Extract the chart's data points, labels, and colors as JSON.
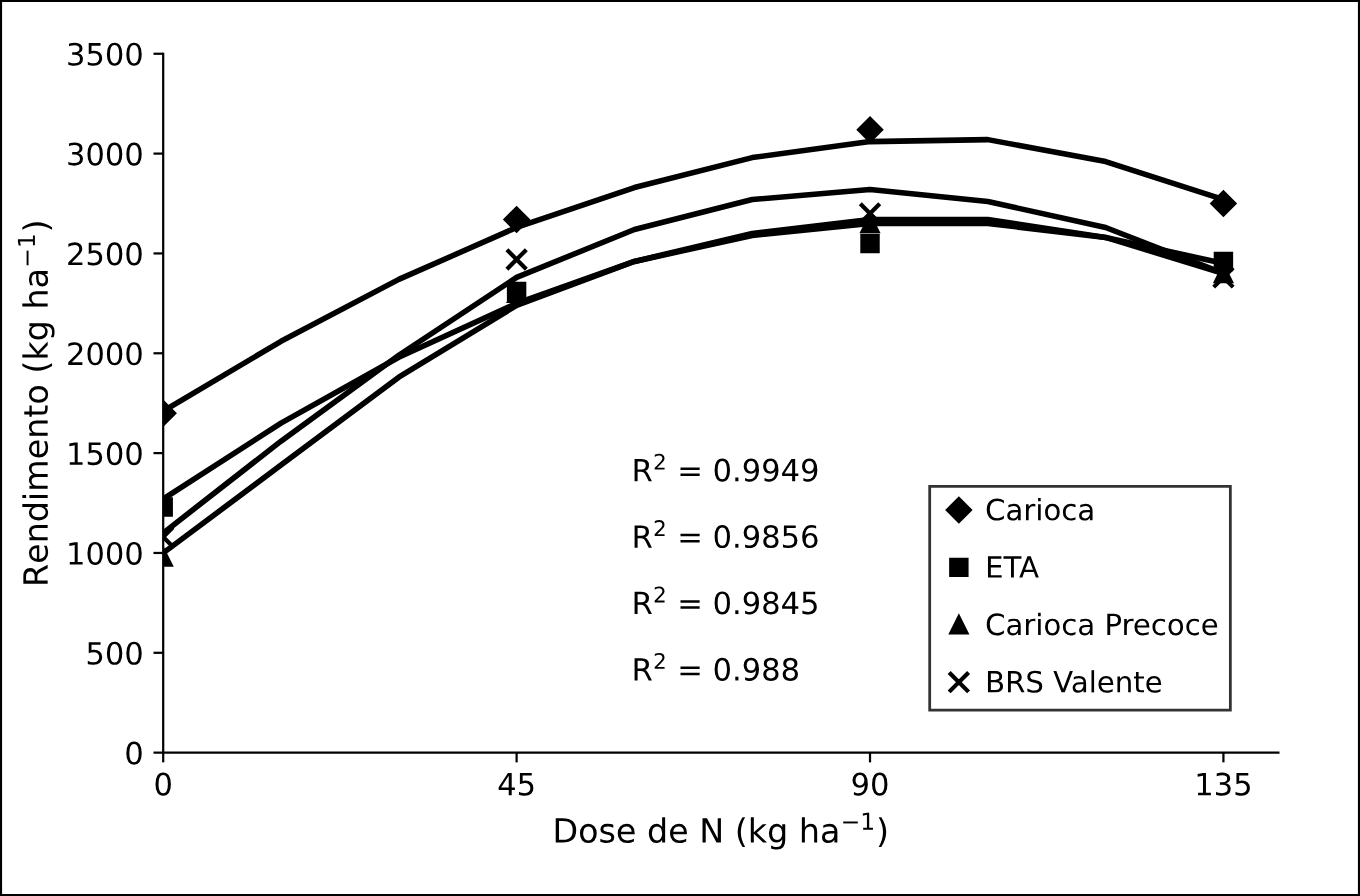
{
  "chart_data": {
    "type": "scatter",
    "xlabel": "Dose de N (kg ha$^{−1}$)",
    "ylabel": "Rendimento (kg ha$^{−1}$)",
    "x": [
      0,
      45,
      90,
      135
    ],
    "xlim": [
      0,
      142
    ],
    "xticks": [
      0,
      45,
      90,
      135
    ],
    "ylim": [
      0,
      3500
    ],
    "yticks": [
      0,
      500,
      1000,
      1500,
      2000,
      2500,
      3000,
      3500
    ],
    "grid": false,
    "legend": "bottom right",
    "series": [
      {
        "name": "Carioca",
        "color": "#000000",
        "marker": "diamond",
        "values": [
          1700,
          2670,
          3120,
          2750
        ]
      },
      {
        "name": "ETA",
        "color": "#000000",
        "marker": "square",
        "values": [
          1230,
          2310,
          2550,
          2460
        ]
      },
      {
        "name": "Carioca Precoce",
        "color": "#000000",
        "marker": "triangle",
        "values": [
          980,
          2300,
          2650,
          2400
        ]
      },
      {
        "name": "BRS Valente",
        "color": "#000000",
        "marker": "cross",
        "values": [
          1080,
          2470,
          2700,
          2380
        ]
      },
      {
        "type": "line",
        "color": "#000000",
        "marker": "none",
        "x": [
          0,
          15,
          30,
          45,
          60,
          75,
          90,
          105,
          120,
          135
        ],
        "values": [
          1710,
          2060,
          2370,
          2630,
          2830,
          2980,
          3060,
          3070,
          2960,
          2770
        ]
      },
      {
        "type": "line",
        "color": "#000000",
        "marker": "none",
        "x": [
          0,
          15,
          30,
          45,
          60,
          75,
          90,
          105,
          120,
          135
        ],
        "values": [
          1270,
          1650,
          1980,
          2250,
          2460,
          2590,
          2650,
          2650,
          2580,
          2450
        ]
      },
      {
        "type": "line",
        "color": "#000000",
        "marker": "none",
        "x": [
          0,
          15,
          30,
          45,
          60,
          75,
          90,
          105,
          120,
          135
        ],
        "values": [
          1000,
          1440,
          1880,
          2240,
          2460,
          2600,
          2670,
          2670,
          2580,
          2400
        ]
      },
      {
        "type": "line",
        "color": "#000000",
        "marker": "none",
        "x": [
          0,
          15,
          30,
          45,
          60,
          75,
          90,
          105,
          120,
          135
        ],
        "values": [
          1100,
          1560,
          1990,
          2380,
          2620,
          2770,
          2820,
          2760,
          2630,
          2400
        ]
      }
    ],
    "annotations": [
      "R$^{2}$ = 0.9949",
      "R$^{2}$ = 0.9856",
      "R$^{2}$ = 0.9845",
      "R$^{2}$ = 0.988"
    ]
  }
}
